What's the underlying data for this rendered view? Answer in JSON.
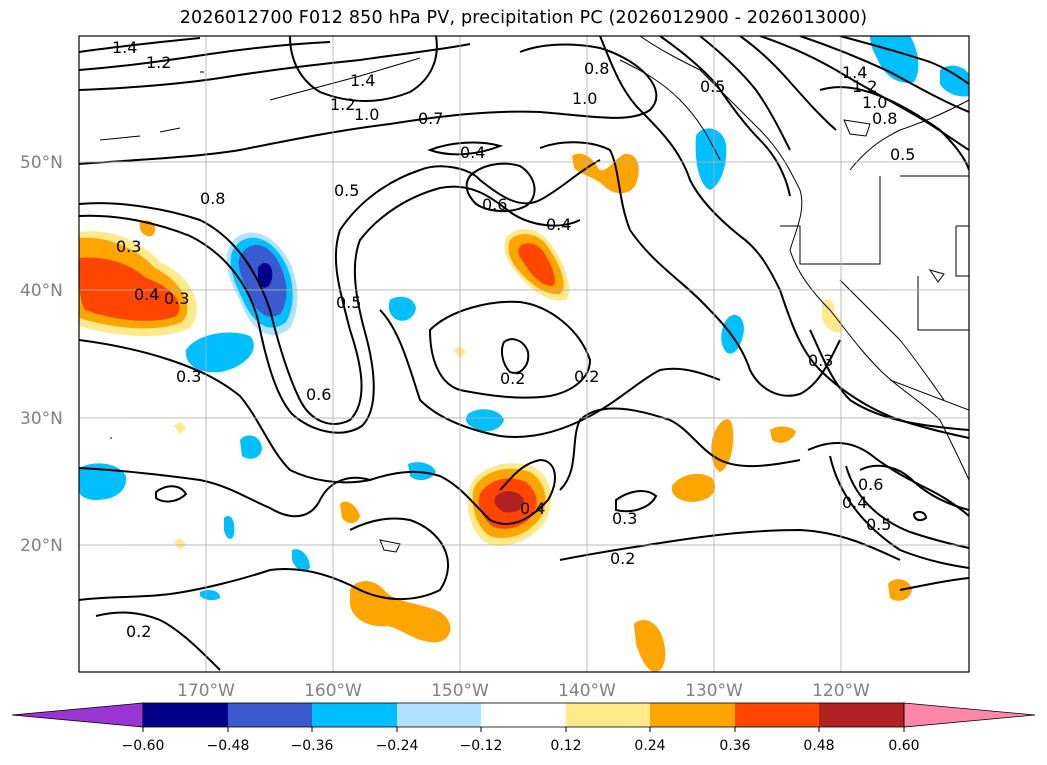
{
  "title": "2026012700 F012 850 hPa PV, precipitation PC (2026012900 - 2026013000)",
  "latitude_labels": [
    "50°N",
    "40°N",
    "30°N",
    "20°N"
  ],
  "longitude_labels": [
    "170°W",
    "160°W",
    "150°W",
    "140°W",
    "130°W",
    "120°W"
  ],
  "pv_contour_labels": [
    "1.4",
    "1.2",
    "1.4",
    "1.2",
    "1.0",
    "0.7",
    "0.4",
    "0.5",
    "0.8",
    "0.6",
    "0.3",
    "0.4",
    "0.3",
    "0.5",
    "0.6",
    "0.3",
    "0.2",
    "0.2",
    "0.3",
    "0.4",
    "0.2",
    "0.2",
    "0.8",
    "1.0",
    "0.4",
    "0.5",
    "1.4",
    "1.2",
    "1.0",
    "0.8",
    "0.5",
    "0.3",
    "0.4",
    "0.5",
    "0.6"
  ],
  "colorbar": {
    "colors": [
      "#9a35d4",
      "#00008b",
      "#3a5bd0",
      "#00bfff",
      "#b0e2ff",
      "#ffffff",
      "#ffe98a",
      "#ffa500",
      "#ff4500",
      "#b22222",
      "#ff88aa"
    ],
    "tick_labels": [
      "−0.60",
      "−0.48",
      "−0.36",
      "−0.24",
      "−0.12",
      "0.12",
      "0.24",
      "0.36",
      "0.48",
      "0.60"
    ]
  },
  "map_style": {
    "land_outline_color": "#000000",
    "gridline_color": "#b0b0b0",
    "contour_color": "#000000"
  }
}
